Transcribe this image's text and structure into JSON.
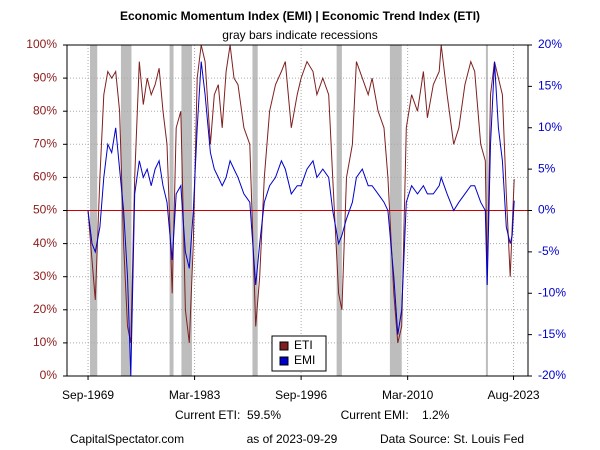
{
  "chart_data": {
    "type": "line",
    "title": "Economic Momentum Index (EMI) | Economic Trend Index (ETI)",
    "subtitle": "gray bars indicate recessions",
    "x": [
      "1969-09",
      "1970-03",
      "1970-08",
      "1971-03",
      "1971-09",
      "1972-03",
      "1972-09",
      "1973-03",
      "1973-09",
      "1974-03",
      "1974-09",
      "1975-02",
      "1975-08",
      "1976-03",
      "1976-09",
      "1977-03",
      "1977-09",
      "1978-03",
      "1978-09",
      "1979-03",
      "1979-09",
      "1980-05",
      "1980-11",
      "1981-06",
      "1982-01",
      "1982-07",
      "1983-01",
      "1983-07",
      "1984-01",
      "1984-07",
      "1985-03",
      "1985-09",
      "1986-03",
      "1986-09",
      "1987-03",
      "1987-09",
      "1988-03",
      "1988-09",
      "1989-06",
      "1990-03",
      "1990-12",
      "1991-06",
      "1992-01",
      "1992-09",
      "1993-06",
      "1994-03",
      "1994-09",
      "1995-06",
      "1996-03",
      "1996-09",
      "1997-06",
      "1998-03",
      "1998-09",
      "1999-06",
      "2000-03",
      "2000-09",
      "2001-06",
      "2001-11",
      "2002-06",
      "2003-03",
      "2003-09",
      "2004-06",
      "2005-03",
      "2005-09",
      "2006-06",
      "2007-03",
      "2007-09",
      "2008-06",
      "2008-12",
      "2009-06",
      "2010-01",
      "2010-09",
      "2011-06",
      "2012-03",
      "2012-09",
      "2013-06",
      "2014-03",
      "2014-06",
      "2015-03",
      "2016-01",
      "2016-09",
      "2017-06",
      "2018-03",
      "2018-09",
      "2019-06",
      "2020-01",
      "2020-04",
      "2020-09",
      "2021-03",
      "2021-09",
      "2022-03",
      "2022-09",
      "2023-03",
      "2023-06",
      "2023-09"
    ],
    "series": [
      {
        "name": "ETI",
        "color": "#7f1f1f",
        "values": [
          50,
          35,
          23,
          60,
          85,
          92,
          90,
          92,
          80,
          40,
          15,
          10,
          60,
          95,
          82,
          90,
          85,
          88,
          93,
          80,
          70,
          25,
          75,
          80,
          20,
          10,
          40,
          90,
          100,
          95,
          70,
          85,
          88,
          75,
          92,
          100,
          90,
          88,
          75,
          70,
          15,
          30,
          60,
          80,
          88,
          92,
          95,
          75,
          85,
          90,
          95,
          92,
          85,
          90,
          85,
          60,
          25,
          20,
          60,
          70,
          95,
          90,
          85,
          90,
          80,
          75,
          60,
          25,
          10,
          15,
          75,
          85,
          80,
          92,
          78,
          88,
          92,
          100,
          85,
          70,
          75,
          88,
          95,
          92,
          70,
          65,
          30,
          85,
          95,
          90,
          85,
          55,
          30,
          45,
          59.5
        ]
      },
      {
        "name": "EMI",
        "color": "#0000cc",
        "axis": "y2",
        "values": [
          0,
          -4,
          -5,
          -2,
          4,
          8,
          7,
          10,
          5,
          0,
          -8,
          -20,
          2,
          6,
          4,
          5,
          3,
          5,
          6,
          3,
          1,
          -6,
          2,
          3,
          -5,
          -7,
          0,
          10,
          18,
          14,
          7,
          5,
          4,
          3,
          4,
          6,
          5,
          4,
          2,
          1,
          -9,
          -4,
          1,
          3,
          4,
          6,
          5,
          2,
          3,
          3,
          5,
          6,
          4,
          5,
          4,
          0,
          -4,
          -3,
          -1,
          1,
          4,
          5,
          3,
          3,
          2,
          1,
          0,
          -8,
          -15,
          -12,
          1,
          3,
          2,
          3,
          2,
          2,
          3,
          4,
          2,
          0,
          1,
          2,
          3,
          3,
          1,
          0,
          -9,
          8,
          18,
          10,
          6,
          -2,
          -4,
          -3,
          1.2
        ]
      }
    ],
    "recessions": [
      [
        "1969-12",
        "1970-11"
      ],
      [
        "1973-11",
        "1975-03"
      ],
      [
        "1980-01",
        "1980-07"
      ],
      [
        "1981-07",
        "1982-11"
      ],
      [
        "1990-07",
        "1991-03"
      ],
      [
        "2001-03",
        "2001-11"
      ],
      [
        "2007-12",
        "2009-06"
      ],
      [
        "2020-02",
        "2020-04"
      ]
    ],
    "recession_color": "#bdbdbd",
    "reference_line": 50,
    "xlim": [
      "1967-01",
      "2025-06"
    ],
    "xticks": [
      {
        "value": "1969-09",
        "label": "Sep-1969"
      },
      {
        "value": "1983-03",
        "label": "Mar-1983"
      },
      {
        "value": "1996-09",
        "label": "Sep-1996"
      },
      {
        "value": "2010-03",
        "label": "Mar-2010"
      },
      {
        "value": "2023-08",
        "label": "Aug-2023"
      }
    ],
    "ylim": [
      0,
      100
    ],
    "yticks": [
      {
        "value": 0,
        "label": "0%"
      },
      {
        "value": 10,
        "label": "10%"
      },
      {
        "value": 20,
        "label": "20%"
      },
      {
        "value": 30,
        "label": "30%"
      },
      {
        "value": 40,
        "label": "40%"
      },
      {
        "value": 50,
        "label": "50%"
      },
      {
        "value": 60,
        "label": "60%"
      },
      {
        "value": 70,
        "label": "70%"
      },
      {
        "value": 80,
        "label": "80%"
      },
      {
        "value": 90,
        "label": "90%"
      },
      {
        "value": 100,
        "label": "100%"
      }
    ],
    "y2lim": [
      -20,
      20
    ],
    "y2ticks": [
      {
        "value": -20,
        "label": "-20%"
      },
      {
        "value": -15,
        "label": "-15%"
      },
      {
        "value": -10,
        "label": "-10%"
      },
      {
        "value": -5,
        "label": "-5%"
      },
      {
        "value": 0,
        "label": "0%"
      },
      {
        "value": 5,
        "label": "5%"
      },
      {
        "value": 10,
        "label": "10%"
      },
      {
        "value": 15,
        "label": "15%"
      },
      {
        "value": 20,
        "label": "20%"
      }
    ],
    "grid": true,
    "legend": "bottom-center",
    "footer": {
      "current_eti": "Current ETI:  59.5%",
      "current_emi": "Current EMI:    1.2%",
      "source_site": "CapitalSpectator.com",
      "as_of": "as of 2023-09-29",
      "data_source": "Data Source: St. Louis Fed"
    }
  }
}
